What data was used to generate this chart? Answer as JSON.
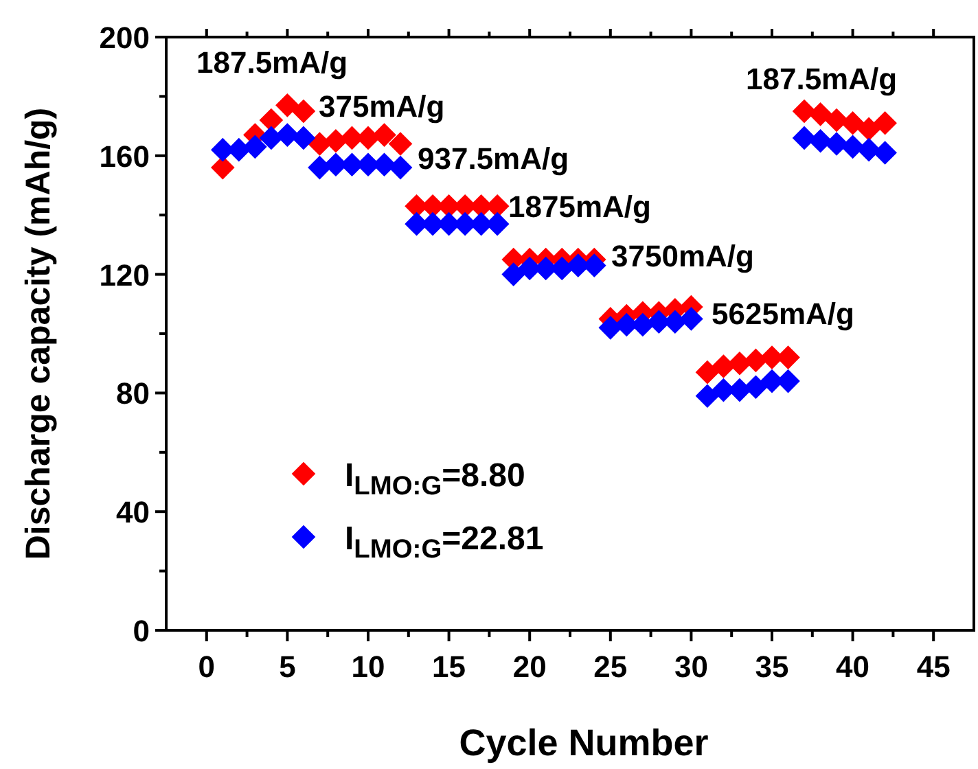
{
  "chart_data": {
    "type": "scatter",
    "xlabel": "Cycle Number",
    "ylabel": "Discharge capacity (mAh/g)",
    "x": [
      1,
      2,
      3,
      4,
      5,
      6,
      7,
      8,
      9,
      10,
      11,
      12,
      13,
      14,
      15,
      16,
      17,
      18,
      19,
      20,
      21,
      22,
      23,
      24,
      25,
      26,
      27,
      28,
      29,
      30,
      31,
      32,
      33,
      34,
      35,
      36,
      37,
      38,
      39,
      40,
      41,
      42
    ],
    "series": [
      {
        "name": "I$_{LMO:G}$=8.80",
        "color": "#ff0000",
        "values": [
          156,
          null,
          167,
          172,
          177,
          175,
          164,
          165,
          166,
          166,
          167,
          164,
          143,
          143,
          143,
          143,
          143,
          143,
          125,
          125,
          125,
          125,
          125,
          125,
          105,
          106,
          107,
          107,
          108,
          109,
          87,
          89,
          90,
          91,
          92,
          92,
          175,
          174,
          172,
          171,
          169,
          171
        ]
      },
      {
        "name": "I$_{LMO:G}$=22.81",
        "color": "#0000ff",
        "values": [
          162,
          162,
          163,
          166,
          167,
          166,
          156,
          157,
          157,
          157,
          157,
          156,
          137,
          137,
          137,
          137,
          137,
          137,
          120,
          122,
          122,
          122,
          123,
          123,
          102,
          103,
          103,
          104,
          104,
          105,
          79,
          81,
          81,
          82,
          84,
          84,
          166,
          165,
          164,
          163,
          162,
          161
        ]
      }
    ],
    "xlim": [
      -2.5,
      47.5
    ],
    "ylim": [
      0,
      200
    ],
    "xticks": [
      0,
      {
        "value": 2.5,
        "label": null
      },
      5,
      {
        "value": 7.5,
        "label": null
      },
      10,
      {
        "value": 12.5,
        "label": null
      },
      15,
      {
        "value": 17.5,
        "label": null
      },
      20,
      {
        "value": 22.5,
        "label": null
      },
      25,
      {
        "value": 27.5,
        "label": null
      },
      30,
      {
        "value": 32.5,
        "label": null
      },
      35,
      {
        "value": 37.5,
        "label": null
      },
      40,
      {
        "value": 42.5,
        "label": null
      },
      45
    ],
    "yticks": [
      0,
      {
        "value": 20,
        "label": null
      },
      40,
      {
        "value": 60,
        "label": null
      },
      80,
      {
        "value": 100,
        "label": null
      },
      120,
      {
        "value": 140,
        "label": null
      },
      160,
      {
        "value": 180,
        "label": null
      },
      200
    ],
    "marker": "diamond",
    "grid": false,
    "legend": "bottom left",
    "annotations": [
      "187.5mA/g",
      "375mA/g",
      "937.5mA/g",
      "1875mA/g",
      "3750mA/g",
      "5625mA/g",
      "187.5mA/g"
    ]
  }
}
